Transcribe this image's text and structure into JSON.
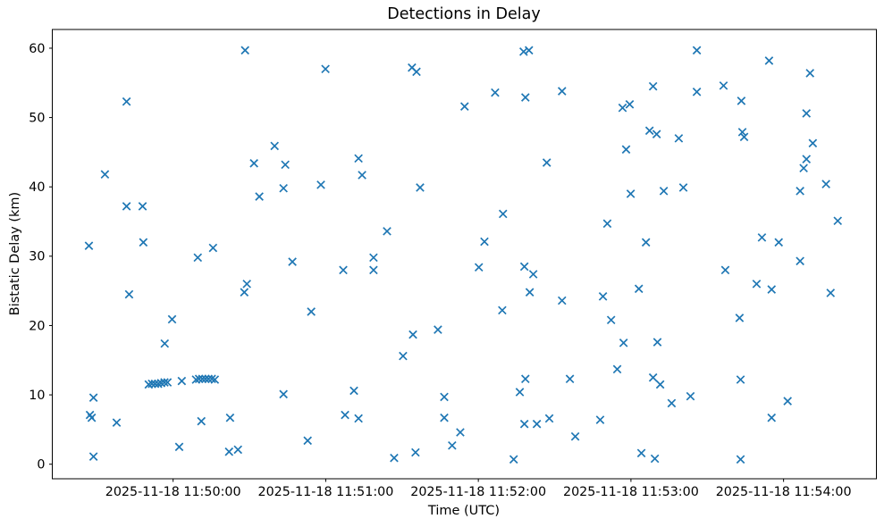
{
  "title": "Detections in Delay",
  "xlabel": "Time (UTC)",
  "ylabel": "Bistatic Delay (km)",
  "accent_color": "#1f77b4",
  "axis_color": "#000000",
  "chart_data": {
    "type": "scatter",
    "marker": "x",
    "title": "Detections in Delay",
    "xlabel": "Time (UTC)",
    "ylabel": "Bistatic Delay (km)",
    "legend": null,
    "grid": false,
    "x_unit": "seconds after 2025-11-18 11:49:00 UTC",
    "xlim": [
      12.5,
      336.5
    ],
    "ylim": [
      -2.1,
      62.7
    ],
    "x_ticks": [
      {
        "t": 60,
        "label": "2025-11-18 11:50:00"
      },
      {
        "t": 120,
        "label": "2025-11-18 11:51:00"
      },
      {
        "t": 180,
        "label": "2025-11-18 11:52:00"
      },
      {
        "t": 240,
        "label": "2025-11-18 11:53:00"
      },
      {
        "t": 300,
        "label": "2025-11-18 11:54:00"
      }
    ],
    "y_ticks": [
      0,
      10,
      20,
      30,
      40,
      50,
      60
    ],
    "points": [
      [
        88.3,
        59.7
      ],
      [
        41.7,
        52.3
      ],
      [
        33.2,
        41.8
      ],
      [
        41.7,
        37.2
      ],
      [
        48.0,
        37.2
      ],
      [
        26.9,
        31.5
      ],
      [
        48.3,
        32.0
      ],
      [
        75.7,
        31.2
      ],
      [
        91.8,
        43.4
      ],
      [
        93.9,
        38.6
      ],
      [
        69.7,
        29.8
      ],
      [
        119.9,
        57.0
      ],
      [
        153.9,
        57.2
      ],
      [
        155.7,
        56.6
      ],
      [
        99.9,
        45.9
      ],
      [
        104.1,
        43.2
      ],
      [
        132.9,
        44.1
      ],
      [
        134.3,
        41.7
      ],
      [
        103.4,
        39.8
      ],
      [
        118.1,
        40.3
      ],
      [
        157.1,
        39.9
      ],
      [
        144.1,
        33.6
      ],
      [
        138.8,
        29.8
      ],
      [
        138.8,
        28.0
      ],
      [
        197.8,
        59.5
      ],
      [
        199.9,
        59.7
      ],
      [
        186.6,
        53.6
      ],
      [
        174.6,
        51.6
      ],
      [
        198.5,
        52.9
      ],
      [
        212.9,
        53.8
      ],
      [
        248.7,
        54.5
      ],
      [
        236.7,
        51.4
      ],
      [
        239.5,
        51.9
      ],
      [
        247.3,
        48.1
      ],
      [
        250.1,
        47.6
      ],
      [
        238.1,
        45.4
      ],
      [
        206.9,
        43.5
      ],
      [
        239.9,
        39.0
      ],
      [
        252.9,
        39.4
      ],
      [
        189.7,
        36.1
      ],
      [
        230.7,
        34.7
      ],
      [
        182.4,
        32.1
      ],
      [
        245.9,
        32.0
      ],
      [
        265.9,
        59.7
      ],
      [
        294.3,
        58.2
      ],
      [
        310.4,
        56.4
      ],
      [
        276.4,
        54.6
      ],
      [
        265.9,
        53.7
      ],
      [
        283.4,
        52.4
      ],
      [
        309.0,
        50.6
      ],
      [
        258.8,
        47.0
      ],
      [
        283.8,
        47.9
      ],
      [
        284.5,
        47.2
      ],
      [
        311.5,
        46.3
      ],
      [
        309.0,
        44.0
      ],
      [
        307.9,
        42.7
      ],
      [
        260.6,
        39.9
      ],
      [
        306.5,
        39.4
      ],
      [
        316.7,
        40.4
      ],
      [
        321.3,
        35.1
      ],
      [
        291.5,
        32.7
      ],
      [
        298.1,
        32.0
      ],
      [
        42.7,
        24.5
      ],
      [
        89.0,
        26.0
      ],
      [
        88.0,
        24.8
      ],
      [
        59.6,
        20.9
      ],
      [
        56.7,
        17.4
      ],
      [
        50.4,
        11.5
      ],
      [
        51.7,
        11.6
      ],
      [
        52.9,
        11.6
      ],
      [
        54.1,
        11.6
      ],
      [
        55.3,
        11.7
      ],
      [
        56.6,
        11.8
      ],
      [
        57.8,
        11.8
      ],
      [
        63.4,
        12.0
      ],
      [
        69.0,
        12.2
      ],
      [
        70.2,
        12.3
      ],
      [
        71.5,
        12.3
      ],
      [
        72.7,
        12.3
      ],
      [
        73.9,
        12.3
      ],
      [
        75.2,
        12.3
      ],
      [
        76.4,
        12.2
      ],
      [
        28.7,
        9.6
      ],
      [
        27.3,
        7.1
      ],
      [
        28.0,
        6.7
      ],
      [
        37.8,
        6.0
      ],
      [
        71.1,
        6.2
      ],
      [
        82.4,
        6.7
      ],
      [
        62.4,
        2.5
      ],
      [
        82.0,
        1.8
      ],
      [
        85.5,
        2.1
      ],
      [
        28.7,
        1.1
      ],
      [
        106.9,
        29.2
      ],
      [
        126.9,
        28.0
      ],
      [
        114.3,
        22.0
      ],
      [
        154.3,
        18.7
      ],
      [
        164.1,
        19.4
      ],
      [
        150.4,
        15.6
      ],
      [
        103.4,
        10.1
      ],
      [
        131.1,
        10.6
      ],
      [
        127.6,
        7.1
      ],
      [
        132.9,
        6.6
      ],
      [
        166.6,
        9.7
      ],
      [
        166.6,
        6.7
      ],
      [
        112.9,
        3.4
      ],
      [
        172.9,
        4.6
      ],
      [
        169.7,
        2.7
      ],
      [
        146.9,
        0.9
      ],
      [
        155.3,
        1.7
      ],
      [
        180.2,
        28.4
      ],
      [
        198.1,
        28.5
      ],
      [
        201.6,
        27.4
      ],
      [
        200.2,
        24.8
      ],
      [
        189.4,
        22.2
      ],
      [
        212.9,
        23.6
      ],
      [
        229.0,
        24.2
      ],
      [
        243.1,
        25.3
      ],
      [
        232.2,
        20.8
      ],
      [
        237.1,
        17.5
      ],
      [
        250.4,
        17.6
      ],
      [
        234.6,
        13.7
      ],
      [
        198.5,
        12.3
      ],
      [
        216.0,
        12.3
      ],
      [
        196.3,
        10.4
      ],
      [
        248.7,
        12.5
      ],
      [
        251.5,
        11.5
      ],
      [
        198.1,
        5.8
      ],
      [
        203.0,
        5.8
      ],
      [
        207.9,
        6.6
      ],
      [
        227.9,
        6.4
      ],
      [
        218.1,
        4.0
      ],
      [
        244.1,
        1.6
      ],
      [
        249.4,
        0.8
      ],
      [
        193.9,
        0.7
      ],
      [
        306.5,
        29.3
      ],
      [
        277.1,
        28.0
      ],
      [
        289.4,
        26.0
      ],
      [
        295.3,
        25.2
      ],
      [
        318.5,
        24.7
      ],
      [
        282.7,
        21.1
      ],
      [
        283.1,
        12.2
      ],
      [
        263.4,
        9.8
      ],
      [
        256.0,
        8.8
      ],
      [
        301.6,
        9.1
      ],
      [
        295.3,
        6.7
      ],
      [
        283.1,
        0.7
      ]
    ]
  }
}
